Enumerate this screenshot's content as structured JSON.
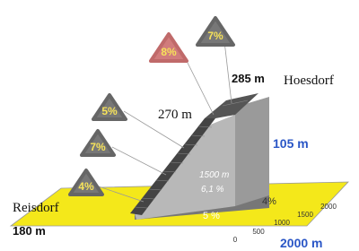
{
  "signs": [
    {
      "label": "4%"
    },
    {
      "label": "7%"
    },
    {
      "label": "5%"
    },
    {
      "label": "8%"
    },
    {
      "label": "7%"
    }
  ],
  "summit": {
    "elevation": "285 m",
    "name": "Hoesdorf"
  },
  "climb_top": "270 m",
  "height_gain": "105 m",
  "segment": {
    "length": "1500 m",
    "gradient": "6,1 %"
  },
  "lower_gradient": "5 %",
  "side_gradient": "4%",
  "start": {
    "name": "Reisdorf",
    "elevation": "180 m"
  },
  "distance": "2000 m",
  "axis_ticks": [
    "0",
    "500",
    "1000",
    "1500",
    "2000"
  ]
}
